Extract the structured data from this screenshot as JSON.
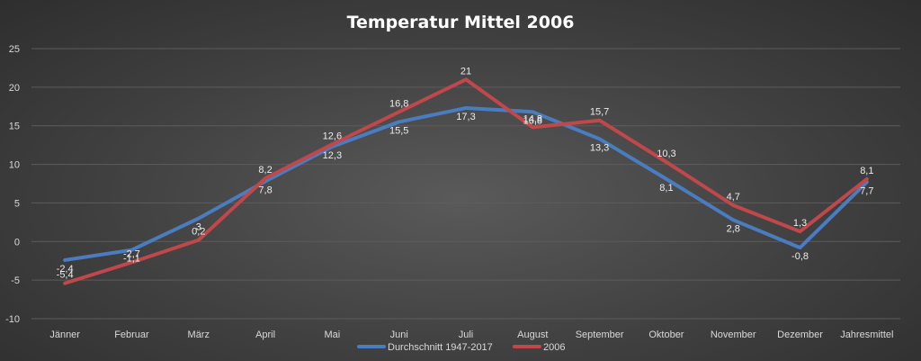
{
  "chart_data": {
    "type": "line",
    "title": "Temperatur Mittel 2006",
    "xlabel": "",
    "ylabel": "",
    "categories": [
      "Jänner",
      "Februar",
      "März",
      "April",
      "Mai",
      "Juni",
      "Juli",
      "August",
      "September",
      "Oktober",
      "November",
      "Dezember",
      "Jahresmittel"
    ],
    "ylim": [
      -10,
      25
    ],
    "yticks": [
      -10,
      -5,
      0,
      5,
      10,
      15,
      20,
      25
    ],
    "ytick_labels": [
      "-10",
      "-5",
      "0",
      "5",
      "10",
      "15",
      "20",
      "25"
    ],
    "grid": true,
    "legend_position": "bottom",
    "series": [
      {
        "name": "Durchschnitt 1947-2017",
        "color": "#4a7cc0",
        "values": [
          -2.4,
          -1.1,
          3,
          7.8,
          12.3,
          15.5,
          17.3,
          16.8,
          13.3,
          8.1,
          2.8,
          -0.8,
          7.7
        ],
        "labels": [
          "-2,4",
          "-1,1",
          "3",
          "7,8",
          "12,3",
          "15,5",
          "17,3",
          "16,8",
          "13,3",
          "8,1",
          "2,8",
          "-0,8",
          "7,7"
        ]
      },
      {
        "name": "2006",
        "color": "#c0474a",
        "values": [
          -5.4,
          -2.7,
          0.2,
          8.2,
          12.6,
          16.8,
          21,
          14.8,
          15.7,
          10.3,
          4.7,
          1.3,
          8.1
        ],
        "labels": [
          "-5,4",
          "-2,7",
          "0,2",
          "8,2",
          "12,6",
          "16,8",
          "21",
          "14,8",
          "15,7",
          "10,3",
          "4,7",
          "1,3",
          "8,1"
        ]
      }
    ]
  }
}
